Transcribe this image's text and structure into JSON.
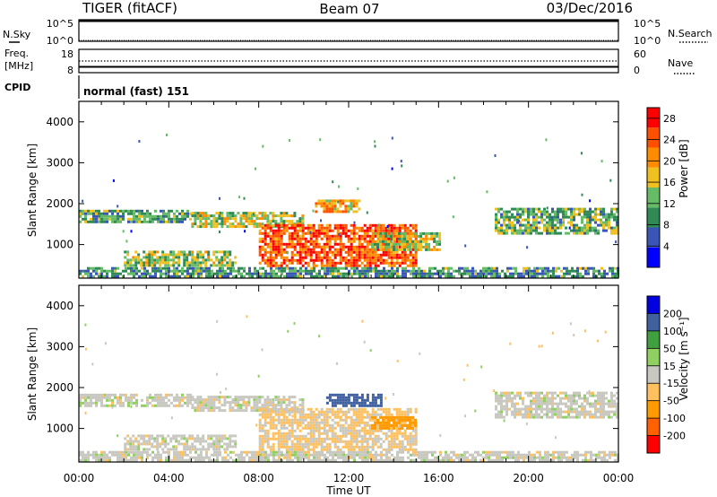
{
  "header": {
    "station": "TIGER (fitACF)",
    "beam": "Beam 07",
    "date": "03/Dec/2016"
  },
  "noise_panel": {
    "left_label": "N.Sky",
    "right_label": "N.Search",
    "left_ticks": [
      "10^5",
      "10^0"
    ],
    "right_ticks": [
      "10^5",
      "10^0"
    ]
  },
  "freq_panel": {
    "left_label_1": "Freq.",
    "left_label_2": "[MHz]",
    "right_label": "Nave",
    "left_ticks": [
      "18",
      "8"
    ],
    "right_ticks": [
      "60",
      "0"
    ]
  },
  "cpid": {
    "label": "CPID",
    "value": "normal (fast) 151"
  },
  "colors": {
    "power_scale": [
      "#0000ff",
      "#3a55b8",
      "#2f8a55",
      "#66bb66",
      "#f0c020",
      "#ff8c00",
      "#ff5000",
      "#ff0000"
    ],
    "velocity_scale": [
      "#ff0000",
      "#ff6000",
      "#ff9a00",
      "#ffc060",
      "#c8c8c0",
      "#8fd060",
      "#40a040",
      "#4060a0",
      "#0000e0"
    ]
  },
  "chart_data": [
    {
      "type": "heatmap",
      "title": "",
      "ylabel": "Slant Range [km]",
      "xlabel": "",
      "x_ticks": [
        "00:00",
        "04:00",
        "08:00",
        "12:00",
        "16:00",
        "20:00",
        "00:00"
      ],
      "y_ticks": [
        "1000",
        "2000",
        "3000",
        "4000"
      ],
      "ylim": [
        180,
        4500
      ],
      "xlim_hours": [
        0,
        24
      ],
      "colorbar_label": "Power [dB]",
      "colorbar_ticks": [
        "28",
        "24",
        "20",
        "16",
        "12",
        "8",
        "4"
      ],
      "colorbar_range": [
        0,
        30
      ],
      "echo_bands": [
        {
          "t0": 0,
          "t1": 5,
          "r0": 1550,
          "r1": 1850,
          "level": 0.35
        },
        {
          "t0": 5,
          "t1": 10,
          "r0": 1450,
          "r1": 1800,
          "level": 0.5
        },
        {
          "t0": 2,
          "t1": 7,
          "r0": 500,
          "r1": 850,
          "level": 0.45
        },
        {
          "t0": 8,
          "t1": 15,
          "r0": 500,
          "r1": 1500,
          "level": 0.85
        },
        {
          "t0": 10.5,
          "t1": 12.5,
          "r0": 1800,
          "r1": 2100,
          "level": 0.7
        },
        {
          "t0": 13,
          "t1": 16,
          "r0": 900,
          "r1": 1300,
          "level": 0.5
        },
        {
          "t0": 18.5,
          "t1": 24,
          "r0": 1300,
          "r1": 1900,
          "level": 0.4
        },
        {
          "t0": 0,
          "t1": 24,
          "r0": 200,
          "r1": 450,
          "level": 0.3
        }
      ]
    },
    {
      "type": "heatmap",
      "title": "",
      "ylabel": "Slant Range [km]",
      "xlabel": "Time UT",
      "x_ticks": [
        "00:00",
        "04:00",
        "08:00",
        "12:00",
        "16:00",
        "20:00",
        "00:00"
      ],
      "y_ticks": [
        "1000",
        "2000",
        "3000",
        "4000"
      ],
      "ylim": [
        180,
        4500
      ],
      "xlim_hours": [
        0,
        24
      ],
      "colorbar_label": "Velocity [m s⁻¹]",
      "colorbar_ticks": [
        "200",
        "100",
        "50",
        "15",
        "-15",
        "-50",
        "-100",
        "-200"
      ],
      "colorbar_range": [
        -250,
        250
      ],
      "echo_bands": [
        {
          "t0": 0,
          "t1": 5,
          "r0": 1550,
          "r1": 1850,
          "level": 0
        },
        {
          "t0": 5,
          "t1": 10,
          "r0": 1450,
          "r1": 1800,
          "level": 0
        },
        {
          "t0": 2,
          "t1": 7,
          "r0": 500,
          "r1": 850,
          "level": 0
        },
        {
          "t0": 8,
          "t1": 15,
          "r0": 500,
          "r1": 1500,
          "level": -20
        },
        {
          "t0": 11,
          "t1": 13.5,
          "r0": 1550,
          "r1": 1850,
          "level": 180
        },
        {
          "t0": 13,
          "t1": 15,
          "r0": 1000,
          "r1": 1300,
          "level": -80
        },
        {
          "t0": 18.5,
          "t1": 24,
          "r0": 1300,
          "r1": 1900,
          "level": 0
        },
        {
          "t0": 0,
          "t1": 24,
          "r0": 200,
          "r1": 450,
          "level": 0
        }
      ]
    }
  ]
}
